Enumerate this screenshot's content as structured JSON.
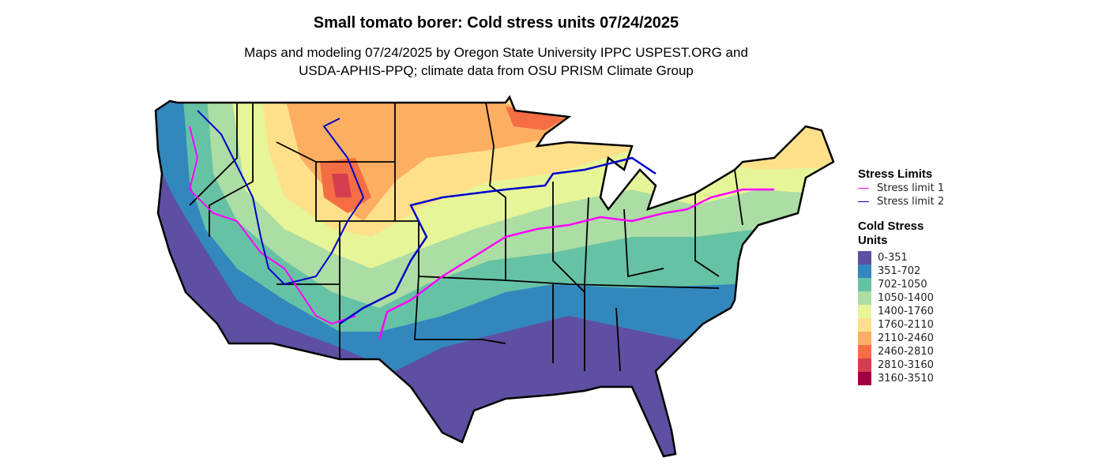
{
  "title": "Small tomato borer: Cold stress units 07/24/2025",
  "subtitle_line1": "Maps and modeling 07/24/2025 by Oregon State University IPPC USPEST.ORG and",
  "subtitle_line2": "USDA-APHIS-PPQ; climate data from OSU PRISM Climate Group",
  "legend_stress": {
    "title": "Stress Limits",
    "items": [
      {
        "label": "Stress limit 1",
        "color": "#FF00FF"
      },
      {
        "label": "Stress limit 2",
        "color": "#0000CD"
      }
    ]
  },
  "legend_units": {
    "title": "Cold Stress Units",
    "items": [
      {
        "label": "0-351",
        "color": "#5E4FA2"
      },
      {
        "label": "351-702",
        "color": "#3288BD"
      },
      {
        "label": "702-1050",
        "color": "#66C2A5"
      },
      {
        "label": "1050-1400",
        "color": "#ABDDA4"
      },
      {
        "label": "1400-1760",
        "color": "#E6F598"
      },
      {
        "label": "1760-2110",
        "color": "#FEE08B"
      },
      {
        "label": "2110-2460",
        "color": "#FDAE61"
      },
      {
        "label": "2460-2810",
        "color": "#F46D43"
      },
      {
        "label": "2810-3160",
        "color": "#D53E4F"
      },
      {
        "label": "3160-3510",
        "color": "#9E0142"
      }
    ]
  }
}
